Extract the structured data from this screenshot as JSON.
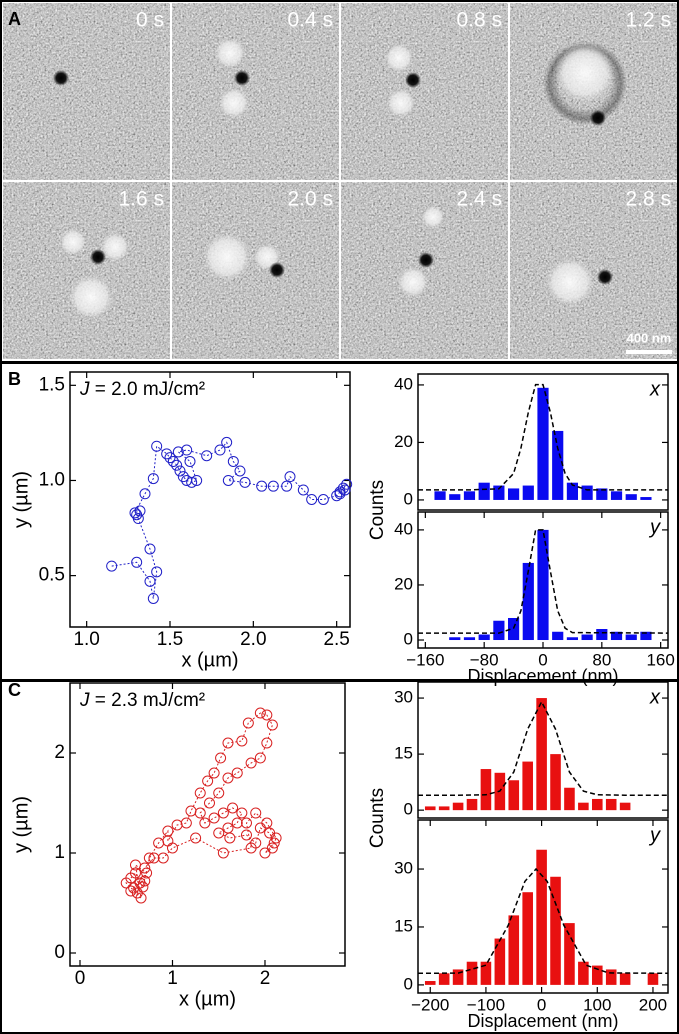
{
  "panel_a": {
    "label": "A",
    "frames": [
      "0 s",
      "0.4 s",
      "0.8 s",
      "1.2 s",
      "1.6 s",
      "2.0 s",
      "2.4 s",
      "2.8 s"
    ],
    "scale_bar": "400 nm"
  },
  "chart_data": [
    {
      "type": "scatter",
      "panel": "B",
      "annotation": {
        "symbol": "J",
        "text": " = 2.0 mJ/cm²"
      },
      "xlabel": "x (µm)",
      "ylabel": "y (µm)",
      "color": "#2020c8",
      "x": [
        1.15,
        1.3,
        1.38,
        1.4,
        1.42,
        1.38,
        1.3,
        1.31,
        1.32,
        1.29,
        1.35,
        1.4,
        1.42,
        1.48,
        1.5,
        1.52,
        1.54,
        1.56,
        1.58,
        1.6,
        1.63,
        1.66,
        1.62,
        1.55,
        1.6,
        1.72,
        1.8,
        1.84,
        1.88,
        1.92,
        1.85,
        1.95,
        2.05,
        2.12,
        2.2,
        2.22,
        2.3,
        2.35,
        2.42,
        2.5,
        2.52,
        2.54,
        2.56,
        2.52,
        2.55
      ],
      "y": [
        0.55,
        0.57,
        0.47,
        0.38,
        0.52,
        0.64,
        0.82,
        0.8,
        0.84,
        0.83,
        0.93,
        1.01,
        1.18,
        1.14,
        1.12,
        1.1,
        1.08,
        1.05,
        1.02,
        1.0,
        0.99,
        1.0,
        1.1,
        1.15,
        1.16,
        1.13,
        1.16,
        1.2,
        1.1,
        1.05,
        1.0,
        0.99,
        0.97,
        0.97,
        0.97,
        1.02,
        0.95,
        0.9,
        0.9,
        0.92,
        0.94,
        0.96,
        0.98,
        0.93,
        0.95
      ],
      "xlim": [
        0.9,
        2.58
      ],
      "ylim": [
        0.23,
        1.57
      ],
      "xticks": [
        {
          "value": 1,
          "label": "1.0"
        },
        1.5,
        {
          "value": 2,
          "label": "2.0"
        },
        2.5
      ],
      "yticks": [
        0.5,
        {
          "value": 1,
          "label": "1.0"
        },
        1.5
      ]
    },
    {
      "type": "histogram",
      "label": "x",
      "ylabel": "Counts",
      "color": "#0a0af0",
      "bins": [
        -170,
        -150,
        -130,
        -110,
        -90,
        -70,
        -50,
        -30,
        -10,
        10,
        30,
        50,
        70,
        90,
        110,
        130,
        150,
        170
      ],
      "values": [
        0,
        3,
        2,
        3,
        6,
        5,
        4,
        5,
        39,
        24,
        6,
        5,
        4,
        3,
        2,
        1,
        0
      ],
      "fit": {
        "x": [
          -170,
          -100,
          -60,
          -40,
          -30,
          -20,
          -10,
          0,
          10,
          20,
          30,
          40,
          60,
          100,
          170
        ],
        "y": [
          3.5,
          3.5,
          3.86,
          9.2,
          18.0,
          30.4,
          40.1,
          40.1,
          30.4,
          18.0,
          9.2,
          5.2,
          3.5,
          3.5,
          3.5
        ]
      },
      "xlim": [
        -170,
        170
      ],
      "ylim": [
        -3.5,
        43.8
      ],
      "yticks": [
        0,
        20,
        40
      ]
    },
    {
      "type": "histogram",
      "label": "y",
      "xlabel": "Displacement (nm)",
      "color": "#0a0af0",
      "bins": [
        -170,
        -150,
        -130,
        -110,
        -90,
        -70,
        -50,
        -30,
        -10,
        10,
        30,
        50,
        70,
        90,
        110,
        130,
        150,
        170
      ],
      "values": [
        0,
        0,
        1,
        1,
        2,
        7,
        8,
        28,
        40,
        3,
        1,
        2,
        4,
        3,
        2,
        3,
        0
      ],
      "fit": {
        "x": [
          -170,
          -60,
          -40,
          -30,
          -20,
          -10,
          0,
          10,
          20,
          30,
          40,
          170
        ],
        "y": [
          2.5,
          2.5,
          4.3,
          10.6,
          25.0,
          40.0,
          40.0,
          25.0,
          10.6,
          4.3,
          2.7,
          2.5
        ]
      },
      "xlim": [
        -170,
        170
      ],
      "ylim": [
        -2.9,
        46.5
      ],
      "yticks": [
        0,
        20,
        40
      ],
      "xticks": [
        {
          "value": -160,
          "label": "−160"
        },
        {
          "value": -80,
          "label": "−80"
        },
        0,
        80,
        160
      ]
    },
    {
      "type": "scatter",
      "panel": "C",
      "annotation": {
        "symbol": "J",
        "text": " = 2.3 mJ/cm²"
      },
      "xlabel": "x (µm)",
      "ylabel": "y (µm)",
      "color": "#d82020",
      "x": [
        0.55,
        0.6,
        0.65,
        0.58,
        0.62,
        0.7,
        0.5,
        0.66,
        0.6,
        0.72,
        0.55,
        0.68,
        0.75,
        0.85,
        0.95,
        0.95,
        1.05,
        1.15,
        1.2,
        1.3,
        1.38,
        1.45,
        1.52,
        1.6,
        1.75,
        1.82,
        1.95,
        2.02,
        2.08,
        2.02,
        1.95,
        1.85,
        1.7,
        1.6,
        1.5,
        1.4,
        1.3,
        1.35,
        1.45,
        1.55,
        1.65,
        1.75,
        1.7,
        1.6,
        1.5,
        1.62,
        1.8,
        1.9,
        1.95,
        2.05,
        2.1,
        2.0,
        2.08,
        2.12,
        2.02,
        1.9,
        1.8,
        1.85,
        1.55,
        1.25,
        1.0,
        0.9,
        0.8,
        0.7
      ],
      "y": [
        0.75,
        0.8,
        0.7,
        0.65,
        0.6,
        0.72,
        0.7,
        0.55,
        0.88,
        0.8,
        0.62,
        0.66,
        0.95,
        1.1,
        1.22,
        1.12,
        1.28,
        1.3,
        1.42,
        1.6,
        1.72,
        1.8,
        1.95,
        2.1,
        2.12,
        2.3,
        2.4,
        2.38,
        2.28,
        2.1,
        1.95,
        1.9,
        1.8,
        1.75,
        1.6,
        1.5,
        1.4,
        1.3,
        1.35,
        1.4,
        1.45,
        1.4,
        1.3,
        1.25,
        1.2,
        1.15,
        1.18,
        1.1,
        1.25,
        1.2,
        1.1,
        1.0,
        1.05,
        1.15,
        1.3,
        1.4,
        1.3,
        1.05,
        1.0,
        1.15,
        1.05,
        0.95,
        0.95,
        0.85
      ],
      "xlim": [
        -0.108,
        2.865
      ],
      "ylim": [
        -0.13,
        2.7
      ],
      "xticks": [
        0,
        1,
        2
      ],
      "yticks": [
        0,
        1,
        2
      ]
    },
    {
      "type": "histogram",
      "label": "x",
      "ylabel": "Counts",
      "color": "#e81010",
      "bins": [
        -212.5,
        -187.5,
        -162.5,
        -137.5,
        -112.5,
        -87.5,
        -62.5,
        -37.5,
        -12.5,
        12.5,
        37.5,
        62.5,
        87.5,
        112.5,
        137.5,
        162.5,
        187.5,
        212.5
      ],
      "values": [
        1,
        1,
        2,
        3,
        11,
        10,
        8,
        13,
        30,
        15,
        6,
        2,
        3,
        3,
        2,
        0,
        0
      ],
      "fit": {
        "x": [
          -222,
          -150,
          -100,
          -75,
          -50,
          -25,
          0,
          25,
          50,
          75,
          100,
          150,
          227
        ],
        "y": [
          4,
          4,
          4.1,
          5.1,
          10.2,
          21.7,
          29,
          21.7,
          10.2,
          5.1,
          4.1,
          4,
          4
        ]
      },
      "xlim": [
        -222,
        227
      ],
      "ylim": [
        -2.1,
        34.3
      ],
      "yticks": [
        0,
        15,
        30
      ]
    },
    {
      "type": "histogram",
      "label": "y",
      "xlabel": "Displacement (nm)",
      "color": "#e81010",
      "bins": [
        -212.5,
        -187.5,
        -162.5,
        -137.5,
        -112.5,
        -87.5,
        -62.5,
        -37.5,
        -12.5,
        12.5,
        37.5,
        62.5,
        87.5,
        112.5,
        137.5,
        162.5,
        187.5,
        212.5
      ],
      "values": [
        1,
        3,
        4,
        6,
        6,
        12,
        18,
        24,
        35,
        28,
        16,
        6,
        5,
        4,
        3,
        0,
        3
      ],
      "fit": {
        "x": [
          -222,
          -150,
          -100,
          -60,
          -30,
          -10,
          10,
          40,
          80,
          120,
          227
        ],
        "y": [
          3,
          3.06,
          5.1,
          15.4,
          26.8,
          30,
          26.8,
          15.4,
          5.1,
          3.1,
          3
        ]
      },
      "xlim": [
        -222,
        227
      ],
      "ylim": [
        -2.1,
        42.7
      ],
      "yticks": [
        0,
        15,
        30
      ],
      "xticks": [
        {
          "value": -200,
          "label": "−200"
        },
        {
          "value": -100,
          "label": "−100"
        },
        0,
        100,
        200
      ]
    }
  ]
}
